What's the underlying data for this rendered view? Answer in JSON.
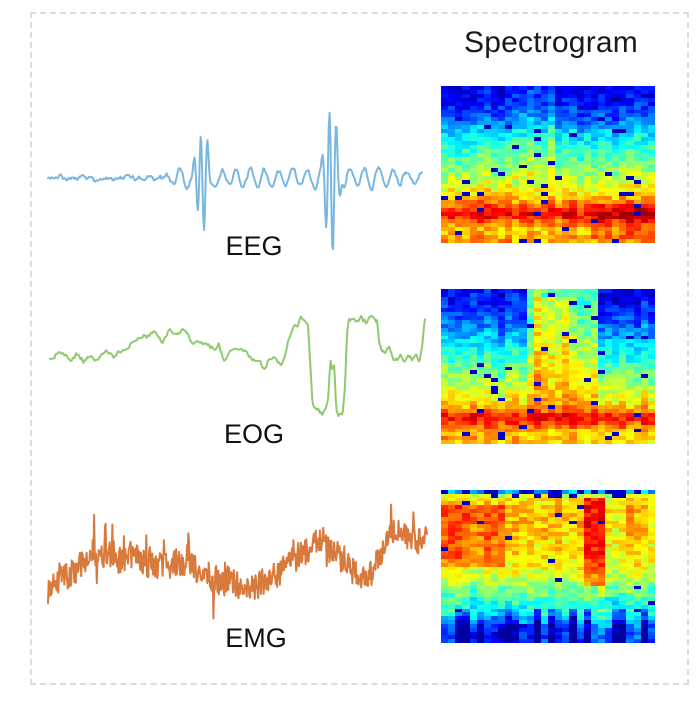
{
  "figure": {
    "title": "Spectrogram",
    "border_color": "#dcdcdc",
    "background": "#ffffff",
    "colormap": "jet",
    "colormap_stops": [
      "#00008f",
      "#0020ff",
      "#00ffff",
      "#80ff80",
      "#ffff00",
      "#ff2000",
      "#8f0000"
    ]
  },
  "chart_data": [
    {
      "type": "line",
      "name": "EEG",
      "color": "#79b7e1",
      "x_range": [
        0,
        1
      ],
      "ylim": [
        -1.1,
        1.1
      ],
      "synthesis": {
        "seed": 11,
        "n": 430,
        "noise_lf": 0.04,
        "lf_k": 120,
        "noise_hf": 0.02,
        "hf_k": 300,
        "ripple": {
          "amp": 0.11,
          "period": 0.038,
          "start": 0.3,
          "fade": 0.9
        },
        "events": [
          {
            "center": 0.413,
            "width": 0.017,
            "period": 0.018,
            "amp": 0.68
          },
          {
            "center": 0.757,
            "width": 0.018,
            "period": 0.019,
            "amp": 1.02
          }
        ]
      }
    },
    {
      "type": "heatmap",
      "name": "EEG spectrogram",
      "colormap": "jet",
      "cols": 30,
      "rows": 40,
      "seed": 21,
      "noise": 0.07,
      "speckle": 0.035,
      "col_noise": 0.04,
      "profile": [
        [
          0,
          0.1
        ],
        [
          0.1,
          0.14
        ],
        [
          0.2,
          0.22
        ],
        [
          0.3,
          0.33
        ],
        [
          0.42,
          0.44
        ],
        [
          0.52,
          0.5
        ],
        [
          0.62,
          0.58
        ],
        [
          0.7,
          0.66
        ],
        [
          0.78,
          0.8
        ],
        [
          0.83,
          0.9
        ],
        [
          0.87,
          0.78
        ],
        [
          0.92,
          0.68
        ],
        [
          1,
          0.72
        ]
      ],
      "features": [
        {
          "x": [
            0.34,
            0.52
          ],
          "y": [
            0.0,
            0.6
          ],
          "boost": 0.07
        },
        {
          "x": [
            0.7,
            1.0
          ],
          "y": [
            0.76,
            0.98
          ],
          "boost": 0.08
        }
      ]
    },
    {
      "type": "line",
      "name": "EOG",
      "color": "#8fca6f",
      "x_range": [
        0,
        1
      ],
      "ylim": [
        -1,
        0.6
      ],
      "synthesis": {
        "seed": 31,
        "n": 430,
        "noise_lf": 0.05,
        "lf_k": 50,
        "noise_hf": 0.025,
        "hf_k": 260,
        "keypoints": [
          [
            0,
            -0.12
          ],
          [
            0.03,
            -0.04
          ],
          [
            0.05,
            -0.1
          ],
          [
            0.07,
            0.0
          ],
          [
            0.09,
            -0.12
          ],
          [
            0.11,
            -0.02
          ],
          [
            0.13,
            -0.09
          ],
          [
            0.15,
            -0.03
          ],
          [
            0.17,
            -0.08
          ],
          [
            0.19,
            0.02
          ],
          [
            0.22,
            0.1
          ],
          [
            0.25,
            0.2
          ],
          [
            0.28,
            0.24
          ],
          [
            0.3,
            0.18
          ],
          [
            0.32,
            0.26
          ],
          [
            0.34,
            0.21
          ],
          [
            0.36,
            0.25
          ],
          [
            0.38,
            0.13
          ],
          [
            0.4,
            0.1
          ],
          [
            0.42,
            0.05
          ],
          [
            0.44,
            0.02
          ],
          [
            0.45,
            0.07
          ],
          [
            0.465,
            -0.17
          ],
          [
            0.48,
            -0.02
          ],
          [
            0.5,
            0.04
          ],
          [
            0.52,
            0.0
          ],
          [
            0.54,
            -0.05
          ],
          [
            0.56,
            -0.08
          ],
          [
            0.57,
            -0.2
          ],
          [
            0.585,
            -0.06
          ],
          [
            0.6,
            -0.1
          ],
          [
            0.615,
            -0.16
          ],
          [
            0.625,
            -0.04
          ],
          [
            0.64,
            0.24
          ],
          [
            0.65,
            0.36
          ],
          [
            0.66,
            0.3
          ],
          [
            0.67,
            0.43
          ],
          [
            0.68,
            0.37
          ],
          [
            0.688,
            0.31
          ],
          [
            0.693,
            -0.1
          ],
          [
            0.7,
            -0.68
          ],
          [
            0.705,
            -0.78
          ],
          [
            0.715,
            -0.74
          ],
          [
            0.725,
            -0.85
          ],
          [
            0.735,
            -0.78
          ],
          [
            0.742,
            -0.6
          ],
          [
            0.748,
            -0.13
          ],
          [
            0.753,
            -0.25
          ],
          [
            0.758,
            -0.2
          ],
          [
            0.763,
            -0.75
          ],
          [
            0.77,
            -0.82
          ],
          [
            0.78,
            -0.78
          ],
          [
            0.787,
            -0.4
          ],
          [
            0.792,
            0.25
          ],
          [
            0.797,
            0.42
          ],
          [
            0.81,
            0.45
          ],
          [
            0.82,
            0.4
          ],
          [
            0.83,
            0.47
          ],
          [
            0.845,
            0.42
          ],
          [
            0.855,
            0.45
          ],
          [
            0.865,
            0.39
          ],
          [
            0.872,
            0.42
          ],
          [
            0.878,
            0.18
          ],
          [
            0.885,
            0.05
          ],
          [
            0.895,
            0.02
          ],
          [
            0.905,
            0.07
          ],
          [
            0.915,
            -0.03
          ],
          [
            0.925,
            -0.07
          ],
          [
            0.935,
            -0.03
          ],
          [
            0.945,
            -0.12
          ],
          [
            0.955,
            -0.07
          ],
          [
            0.965,
            -0.13
          ],
          [
            0.975,
            -0.09
          ],
          [
            0.985,
            -0.15
          ],
          [
            0.992,
            0.05
          ],
          [
            1,
            0.42
          ]
        ]
      }
    },
    {
      "type": "heatmap",
      "name": "EOG spectrogram",
      "colormap": "jet",
      "cols": 30,
      "rows": 40,
      "seed": 41,
      "noise": 0.07,
      "speckle": 0.03,
      "col_noise": 0.04,
      "profile": [
        [
          0,
          0.12
        ],
        [
          0.1,
          0.15
        ],
        [
          0.2,
          0.21
        ],
        [
          0.3,
          0.3
        ],
        [
          0.4,
          0.38
        ],
        [
          0.5,
          0.46
        ],
        [
          0.6,
          0.54
        ],
        [
          0.7,
          0.62
        ],
        [
          0.78,
          0.7
        ],
        [
          0.83,
          0.88
        ],
        [
          0.88,
          0.8
        ],
        [
          0.93,
          0.7
        ],
        [
          1,
          0.68
        ]
      ],
      "features": [
        {
          "x": [
            0.4,
            0.74
          ],
          "y": [
            0.0,
            0.85
          ],
          "boost": 0.34,
          "fade": "down"
        },
        {
          "x": [
            0.43,
            0.6
          ],
          "y": [
            0.05,
            0.85
          ],
          "boost": 0.14,
          "fade": "down"
        }
      ]
    },
    {
      "type": "line",
      "name": "EMG",
      "color": "#d97a3d",
      "x_range": [
        0,
        1
      ],
      "ylim": [
        -0.9,
        0.9
      ],
      "synthesis": {
        "seed": 51,
        "n": 560,
        "noise_lf": 0.06,
        "lf_k": 70,
        "point_noise": 0.17,
        "spikes": {
          "p": 0.05,
          "amp": 0.4
        },
        "keypoints": [
          [
            0,
            -0.3
          ],
          [
            0.03,
            -0.18
          ],
          [
            0.06,
            -0.1
          ],
          [
            0.09,
            -0.02
          ],
          [
            0.12,
            0.08
          ],
          [
            0.15,
            0.12
          ],
          [
            0.18,
            0.05
          ],
          [
            0.21,
            0.13
          ],
          [
            0.24,
            0.08
          ],
          [
            0.27,
            0.0
          ],
          [
            0.3,
            -0.08
          ],
          [
            0.33,
            0.02
          ],
          [
            0.36,
            -0.02
          ],
          [
            0.39,
            -0.1
          ],
          [
            0.42,
            -0.18
          ],
          [
            0.45,
            -0.25
          ],
          [
            0.48,
            -0.22
          ],
          [
            0.51,
            -0.3
          ],
          [
            0.54,
            -0.33
          ],
          [
            0.57,
            -0.25
          ],
          [
            0.6,
            -0.15
          ],
          [
            0.63,
            -0.05
          ],
          [
            0.66,
            0.08
          ],
          [
            0.69,
            0.2
          ],
          [
            0.71,
            0.3
          ],
          [
            0.73,
            0.22
          ],
          [
            0.75,
            0.18
          ],
          [
            0.77,
            0.08
          ],
          [
            0.79,
            -0.02
          ],
          [
            0.81,
            -0.15
          ],
          [
            0.83,
            -0.22
          ],
          [
            0.85,
            -0.15
          ],
          [
            0.87,
            0.0
          ],
          [
            0.89,
            0.2
          ],
          [
            0.91,
            0.38
          ],
          [
            0.93,
            0.45
          ],
          [
            0.95,
            0.32
          ],
          [
            0.97,
            0.35
          ],
          [
            0.99,
            0.3
          ],
          [
            1,
            0.32
          ]
        ]
      }
    },
    {
      "type": "heatmap",
      "name": "EMG spectrogram",
      "colormap": "jet",
      "cols": 30,
      "rows": 40,
      "seed": 61,
      "noise": 0.07,
      "speckle": 0.025,
      "col_noise": 0.04,
      "profile": [
        [
          0,
          0.3
        ],
        [
          0.03,
          0.62
        ],
        [
          0.1,
          0.68
        ],
        [
          0.25,
          0.67
        ],
        [
          0.4,
          0.64
        ],
        [
          0.5,
          0.62
        ],
        [
          0.58,
          0.57
        ],
        [
          0.65,
          0.5
        ],
        [
          0.72,
          0.43
        ],
        [
          0.78,
          0.36
        ],
        [
          0.83,
          0.28
        ],
        [
          0.88,
          0.17
        ],
        [
          0.93,
          0.1
        ],
        [
          1,
          0.08
        ]
      ],
      "features": [
        {
          "x": [
            0,
            1
          ],
          "y": [
            0,
            0.04
          ],
          "boost": 0,
          "dark_p": 0.4
        },
        {
          "x": [
            0,
            0.28
          ],
          "y": [
            0.08,
            0.5
          ],
          "boost": 0.12
        },
        {
          "x": [
            0.68,
            0.78
          ],
          "y": [
            0.03,
            0.62
          ],
          "boost": 0.17
        },
        {
          "x": [
            0,
            1
          ],
          "y": [
            0.78,
            1
          ],
          "boost": 0,
          "col_amp": 0.16
        }
      ]
    }
  ]
}
